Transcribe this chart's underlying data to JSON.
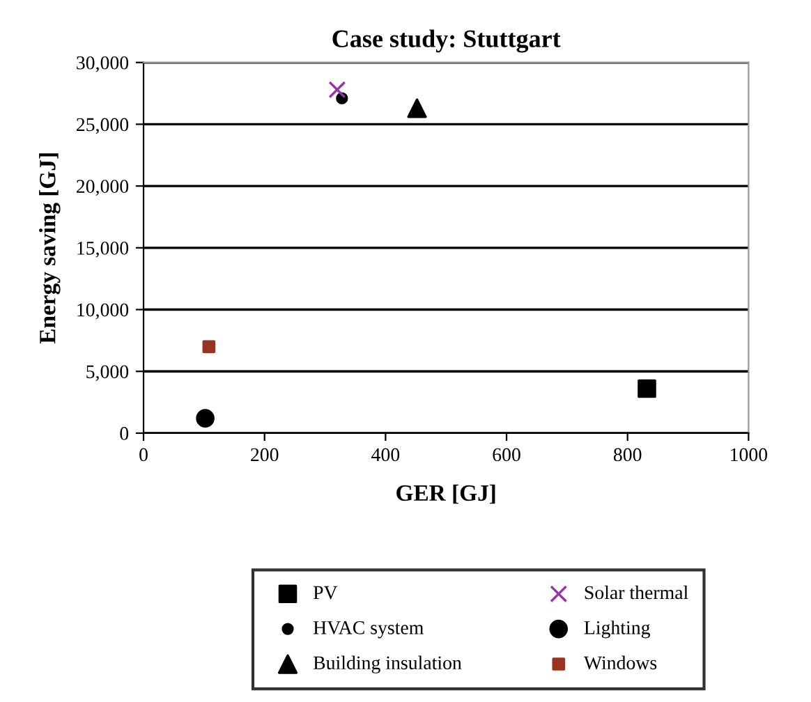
{
  "chart_data": {
    "type": "scatter",
    "title": "Case study: Stuttgart",
    "xlabel": "GER [GJ]",
    "ylabel": "Energy saving [GJ]",
    "xlim": [
      0,
      1000
    ],
    "xticks": [
      0,
      200,
      400,
      600,
      800,
      1000
    ],
    "ylim": [
      0,
      30000
    ],
    "yticks": [
      {
        "value": 0,
        "label": "0"
      },
      {
        "value": 5000,
        "label": "5,000"
      },
      {
        "value": 10000,
        "label": "10,000"
      },
      {
        "value": 15000,
        "label": "15,000"
      },
      {
        "value": 20000,
        "label": "20,000"
      },
      {
        "value": 25000,
        "label": "25,000"
      },
      {
        "value": 30000,
        "label": "30,000"
      }
    ],
    "grid": "y",
    "legend": "bottom",
    "series": [
      {
        "name": "PV",
        "color": "#000000",
        "marker": "square",
        "x": [
          832
        ],
        "values": [
          3600
        ]
      },
      {
        "name": "Building insulation",
        "color": "#000000",
        "marker": "triangle",
        "x": [
          452
        ],
        "values": [
          26300
        ]
      },
      {
        "name": "Lighting",
        "color": "#000000",
        "marker": "circle",
        "x": [
          102
        ],
        "values": [
          1200
        ]
      },
      {
        "name": "HVAC system",
        "color": "#000000",
        "marker": "circle",
        "x": [
          328
        ],
        "values": [
          27100
        ]
      },
      {
        "name": "Solar thermal",
        "color": "#9933aa",
        "marker": "cross",
        "x": [
          320
        ],
        "values": [
          27800
        ]
      },
      {
        "name": "Windows",
        "color": "#993322",
        "marker": "square",
        "x": [
          108
        ],
        "values": [
          7000
        ]
      }
    ]
  }
}
